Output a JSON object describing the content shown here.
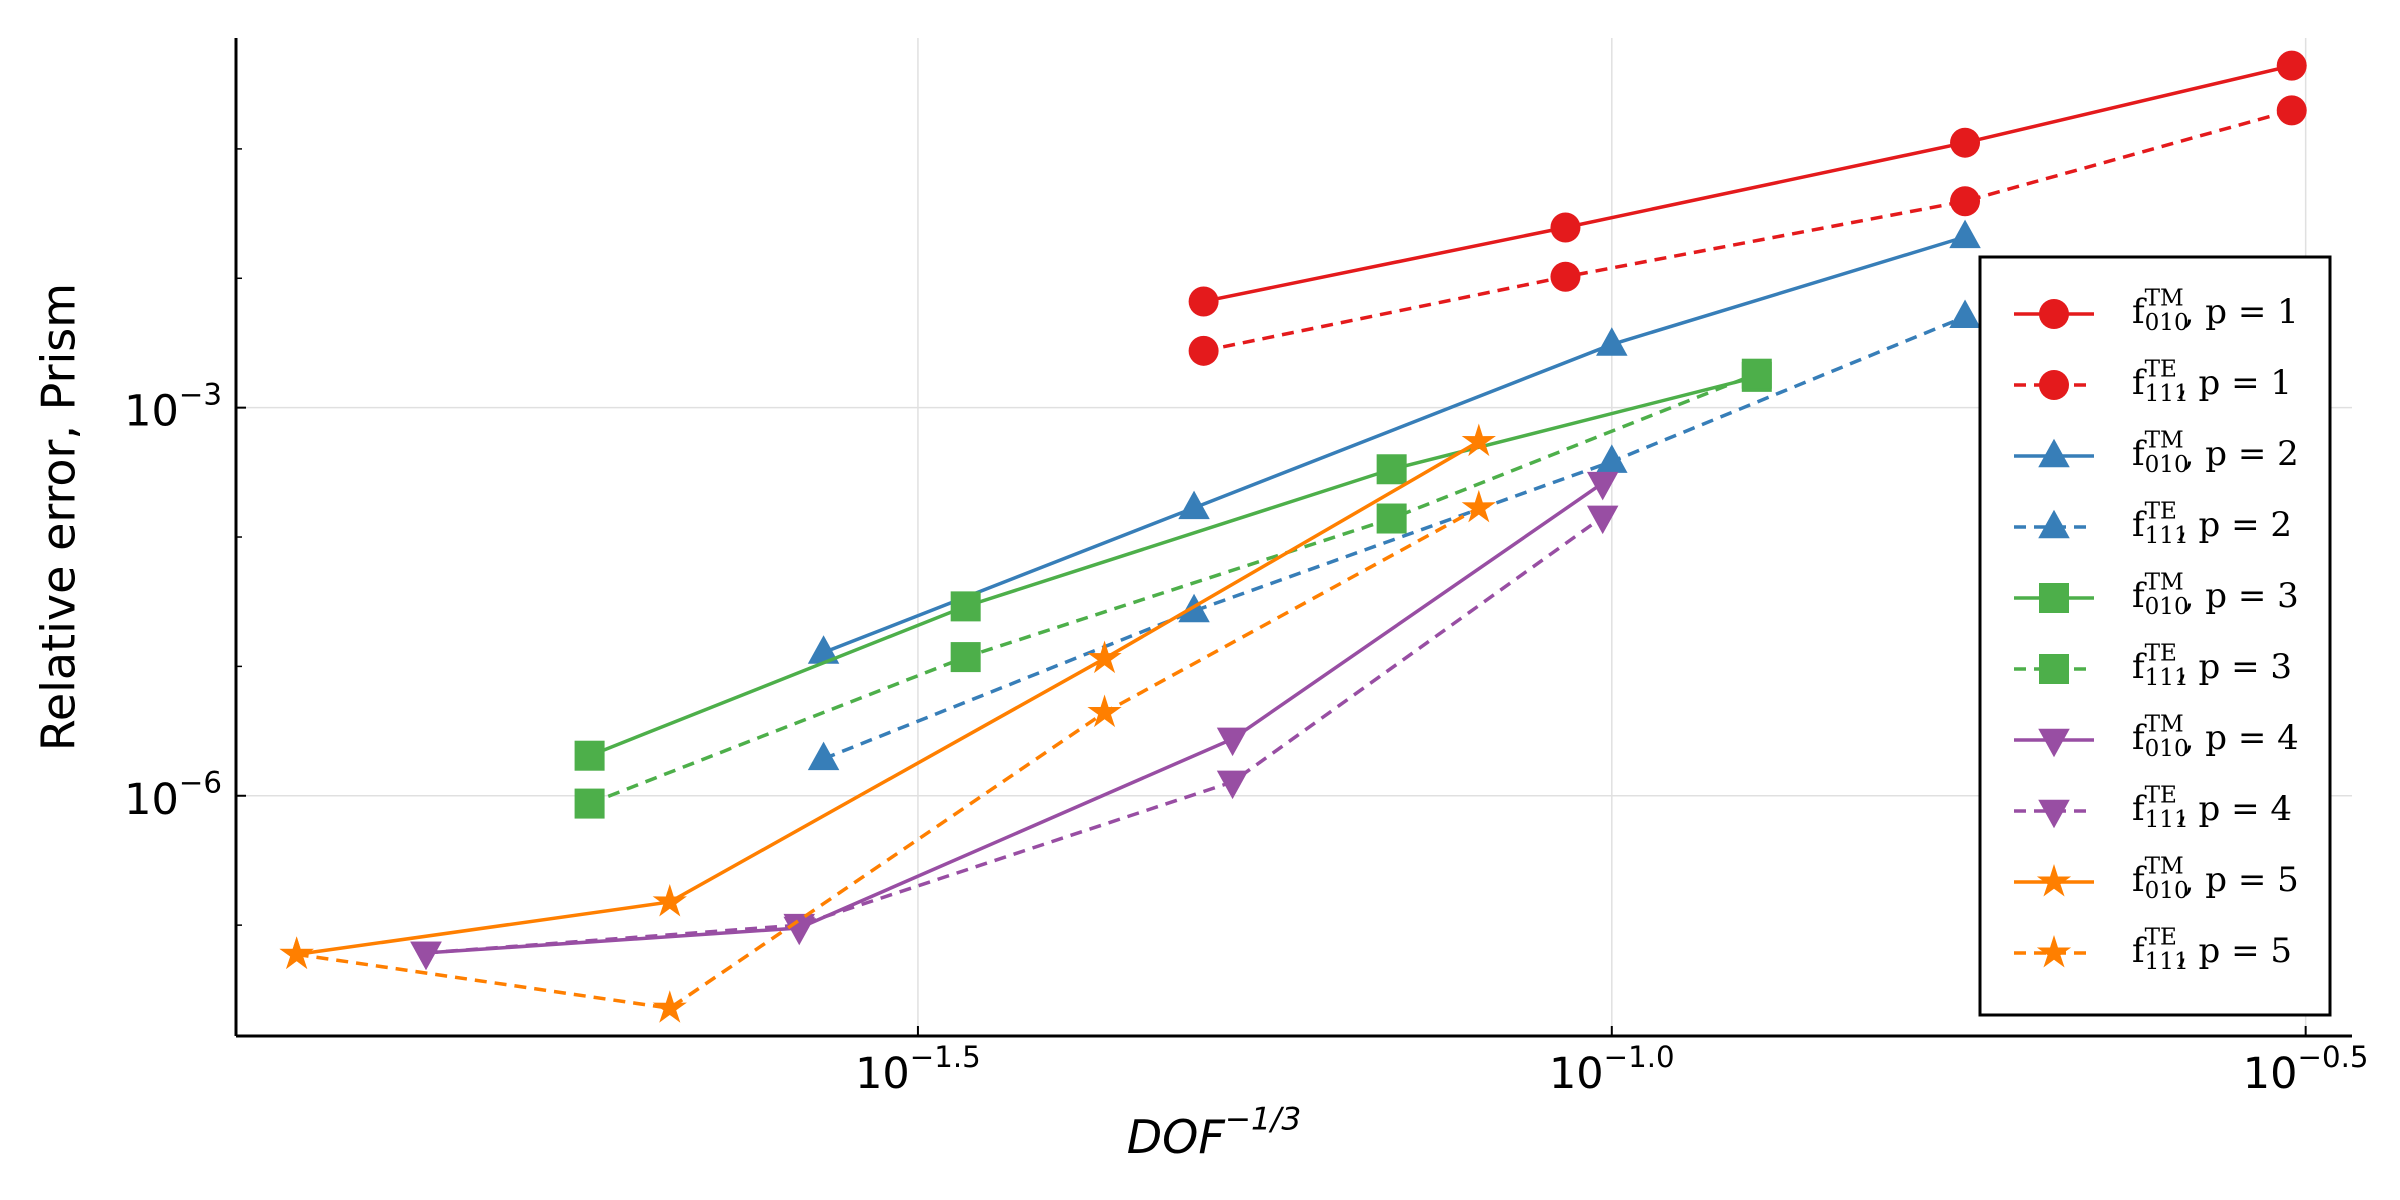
{
  "chart_data": {
    "type": "line",
    "xlabel": "DOF^{−1/3}",
    "ylabel": "Relative error, Prism",
    "xscale": "log",
    "yscale": "log",
    "xlim": [
      0.0102,
      0.3415
    ],
    "ylim": [
      1.39e-08,
      0.72
    ],
    "xticks": [
      {
        "value": 0.031623,
        "label": "10^{−1.5}"
      },
      {
        "value": 0.1,
        "label": "10^{−1.0}"
      },
      {
        "value": 0.31623,
        "label": "10^{−0.5}"
      }
    ],
    "yticks": [
      {
        "value": 1e-06,
        "label": "10^{−6}"
      },
      {
        "value": 0.001,
        "label": "10^{−3}"
      }
    ],
    "y_minor_ticks": [
      1e-07,
      1e-05,
      0.0001,
      0.01,
      0.1
    ],
    "grid": true,
    "legend": "right",
    "series": [
      {
        "name": "f_{010}^{TM}, p = 1",
        "color": "#e41a1c",
        "marker": "circle",
        "linestyle": "solid",
        "x": [
          0.0508,
          0.0926,
          0.1797,
          0.309
        ],
        "values": [
          0.00662,
          0.0247,
          0.1117,
          0.44
        ]
      },
      {
        "name": "f_{111}^{TE}, p = 1",
        "color": "#e41a1c",
        "marker": "circle",
        "linestyle": "dashed",
        "x": [
          0.0508,
          0.0926,
          0.1797,
          0.309
        ],
        "values": [
          0.00275,
          0.01028,
          0.0394,
          0.1986
        ]
      },
      {
        "name": "f_{010}^{TM}, p = 2",
        "color": "#377eb8",
        "marker": "triangle-up",
        "linestyle": "solid",
        "x": [
          0.02704,
          0.05,
          0.1,
          0.1797
        ],
        "values": [
          1.28e-05,
          0.000168,
          0.00308,
          0.0209
        ]
      },
      {
        "name": "f_{111}^{TE}, p = 2",
        "color": "#377eb8",
        "marker": "triangle-up",
        "linestyle": "dashed",
        "x": [
          0.02704,
          0.05,
          0.1,
          0.1797
        ],
        "values": [
          1.93e-06,
          2.68e-05,
          0.000383,
          0.00504
        ]
      },
      {
        "name": "f_{010}^{TM}, p = 3",
        "color": "#4daf4a",
        "marker": "square",
        "linestyle": "solid",
        "x": [
          0.01834,
          0.03423,
          0.0694,
          0.1272
        ],
        "values": [
          2.04e-06,
          2.91e-05,
          0.000334,
          0.00173
        ]
      },
      {
        "name": "f_{111}^{TE}, p = 3",
        "color": "#4daf4a",
        "marker": "square",
        "linestyle": "dashed",
        "x": [
          0.01834,
          0.03423,
          0.0694,
          0.1272
        ],
        "values": [
          8.7e-07,
          1.18e-05,
          0.000139,
          0.00183
        ]
      },
      {
        "name": "f_{010}^{TM}, p = 4",
        "color": "#984ea3",
        "marker": "triangle-down",
        "linestyle": "solid",
        "x": [
          0.01398,
          0.02597,
          0.0533,
          0.0985
        ],
        "values": [
          6.1e-08,
          9.5e-08,
          2.75e-06,
          0.000261
        ]
      },
      {
        "name": "f_{111}^{TE}, p = 4",
        "color": "#984ea3",
        "marker": "triangle-down",
        "linestyle": "dashed",
        "x": [
          0.01398,
          0.02597,
          0.0533,
          0.0985
        ],
        "values": [
          6.1e-08,
          1e-07,
          1.28e-06,
          0.000143
        ]
      },
      {
        "name": "f_{010}^{TM}, p = 5",
        "color": "#ff7f00",
        "marker": "star",
        "linestyle": "solid",
        "x": [
          0.01128,
          0.02095,
          0.0431,
          0.0802
        ],
        "values": [
          5.94e-08,
          1.51e-07,
          1.15e-05,
          0.000547
        ]
      },
      {
        "name": "f_{111}^{TE}, p = 5",
        "color": "#ff7f00",
        "marker": "star",
        "linestyle": "dashed",
        "x": [
          0.01128,
          0.02095,
          0.0431,
          0.0802
        ],
        "values": [
          5.94e-08,
          2.28e-08,
          4.4e-06,
          0.000168
        ]
      }
    ]
  }
}
